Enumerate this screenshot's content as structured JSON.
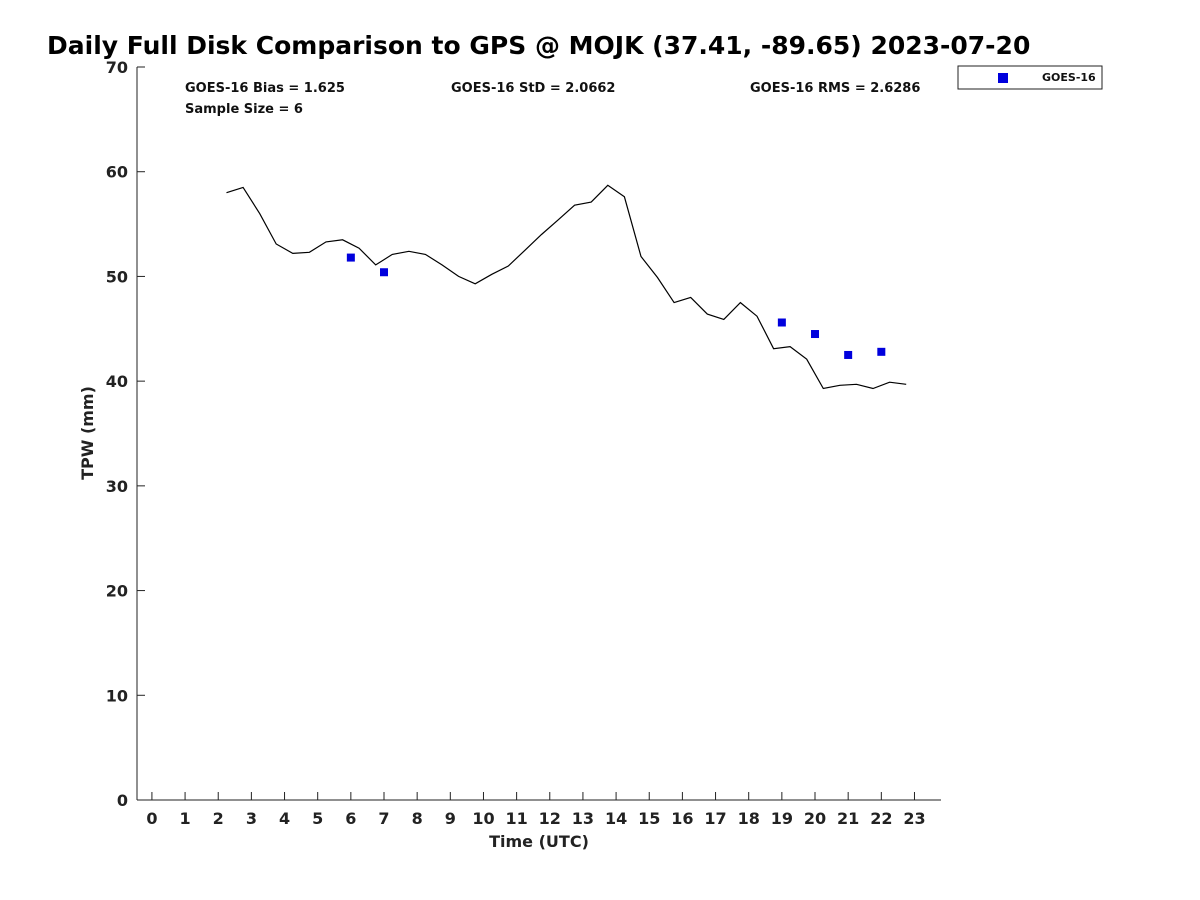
{
  "chart_data": {
    "type": "scatter",
    "title": "Daily Full Disk Comparison to GPS @ MOJK (37.41, -89.65) 2023-07-20",
    "xlabel": "Time (UTC)",
    "ylabel": "TPW (mm)",
    "xlim": [
      -0.45,
      23.8
    ],
    "ylim": [
      0,
      70
    ],
    "x_ticks": [
      "0",
      "1",
      "2",
      "3",
      "4",
      "5",
      "6",
      "7",
      "8",
      "9",
      "10",
      "11",
      "12",
      "13",
      "14",
      "15",
      "16",
      "17",
      "18",
      "19",
      "20",
      "21",
      "22",
      "23"
    ],
    "y_ticks": [
      "0",
      "10",
      "20",
      "30",
      "40",
      "50",
      "60",
      "70"
    ],
    "grid": false,
    "legend_position": "top-right",
    "stats": {
      "bias": "GOES-16 Bias = 1.625",
      "std": "GOES-16 StD = 2.0662",
      "rms": "GOES-16 RMS = 2.6286",
      "sample": "Sample Size = 6"
    },
    "gps_line": {
      "color": "#000000",
      "x": [
        2.25,
        2.75,
        3.25,
        3.75,
        4.25,
        4.75,
        5.25,
        5.75,
        6.25,
        6.75,
        7.25,
        7.75,
        8.25,
        8.75,
        9.25,
        9.75,
        10.25,
        10.75,
        11.25,
        11.75,
        12.25,
        12.75,
        13.25,
        13.75,
        14.25,
        14.75,
        15.25,
        15.75,
        16.25,
        16.75,
        17.25,
        17.75,
        18.25,
        18.75,
        19.25,
        19.75,
        20.25,
        20.75,
        21.25,
        21.75,
        22.25,
        22.75
      ],
      "y": [
        58.0,
        58.5,
        56.0,
        53.1,
        52.2,
        52.3,
        53.3,
        53.5,
        52.7,
        51.1,
        52.1,
        52.4,
        52.1,
        51.1,
        50.0,
        49.3,
        50.2,
        51.0,
        52.5,
        54.0,
        55.4,
        56.8,
        57.1,
        58.7,
        57.6,
        51.9,
        49.9,
        47.5,
        48.0,
        46.4,
        45.9,
        47.5,
        46.2,
        43.1,
        43.3,
        42.1,
        39.3,
        39.6,
        39.7,
        39.3,
        39.9,
        39.7
      ]
    },
    "series": [
      {
        "name": "GOES-16",
        "color": "#0000dd",
        "marker": "square",
        "x": [
          6,
          7,
          19,
          20,
          21,
          22
        ],
        "y": [
          51.8,
          50.4,
          45.6,
          44.5,
          42.5,
          42.8
        ]
      }
    ]
  }
}
